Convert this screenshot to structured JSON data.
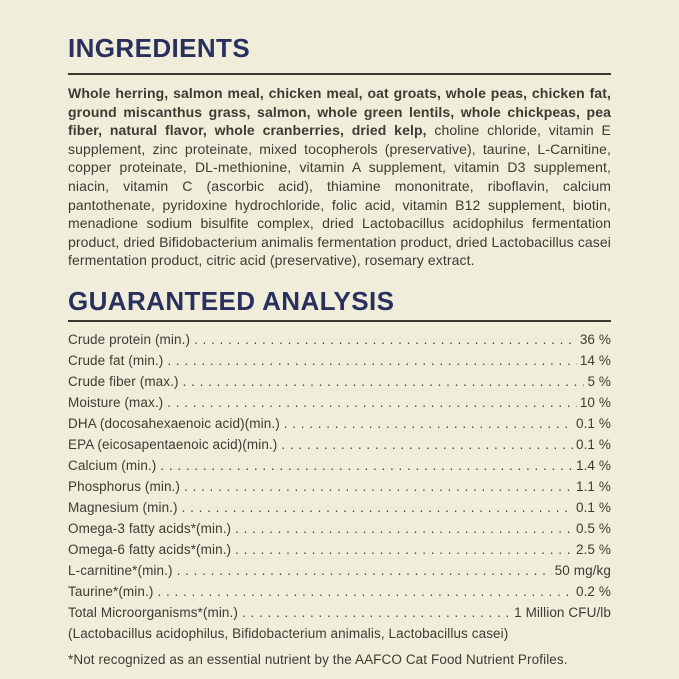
{
  "page": {
    "background_color": "#F0EDDB",
    "heading_color": "#29305E",
    "text_color": "#3E3C32"
  },
  "ingredients": {
    "title": "INGREDIENTS",
    "bold_text": "Whole herring, salmon meal, chicken meal, oat groats, whole peas, chicken fat, ground miscanthus grass, salmon, whole green lentils, whole chickpeas, pea fiber, natural flavor, whole cranberries, dried kelp,",
    "regular_text": " choline chloride, vitamin E supplement, zinc proteinate, mixed tocopherols (preservative), taurine, L-Carnitine, copper proteinate, DL-methionine, vitamin A supplement, vitamin D3 supplement, niacin, vitamin C (ascorbic acid), thiamine mononitrate, riboflavin, calcium pantothenate, pyridoxine hydrochloride, folic acid, vitamin B12 supplement, biotin, menadione sodium bisulfite complex, dried Lactobacillus acidophilus fermentation product, dried Bifidobacterium animalis fermentation product, dried Lactobacillus casei fermentation product, citric acid (preservative), rosemary extract."
  },
  "guaranteed_analysis": {
    "title": "GUARANTEED ANALYSIS",
    "rows": [
      {
        "label": "Crude protein (min.)",
        "value": "36 %"
      },
      {
        "label": "Crude fat (min.)",
        "value": "14 %"
      },
      {
        "label": "Crude fiber (max.)",
        "value": "5 %"
      },
      {
        "label": "Moisture (max.)",
        "value": "10 %"
      },
      {
        "label": "DHA (docosahexaenoic acid)(min.)",
        "value": "0.1 %"
      },
      {
        "label": "EPA (eicosapentaenoic acid)(min.)",
        "value": "0.1 %"
      },
      {
        "label": "Calcium (min.)",
        "value": "1.4 %"
      },
      {
        "label": "Phosphorus (min.)",
        "value": "1.1 %"
      },
      {
        "label": "Magnesium (min.)",
        "value": "0.1 %"
      },
      {
        "label": "Omega-3 fatty acids*(min.)",
        "value": "0.5 %"
      },
      {
        "label": "Omega-6 fatty acids*(min.)",
        "value": "2.5 %"
      },
      {
        "label": "L-carnitine*(min.)",
        "value": "50 mg/kg"
      },
      {
        "label": "Taurine*(min.)",
        "value": "0.2 %"
      },
      {
        "label": "Total Microorganisms*(min.)",
        "value": "1 Million CFU/lb"
      }
    ],
    "microorganisms_detail": "(Lactobacillus acidophilus, Bifidobacterium animalis, Lactobacillus casei)",
    "footnote": "*Not recognized as an essential nutrient by the AAFCO Cat Food Nutrient Profiles."
  }
}
